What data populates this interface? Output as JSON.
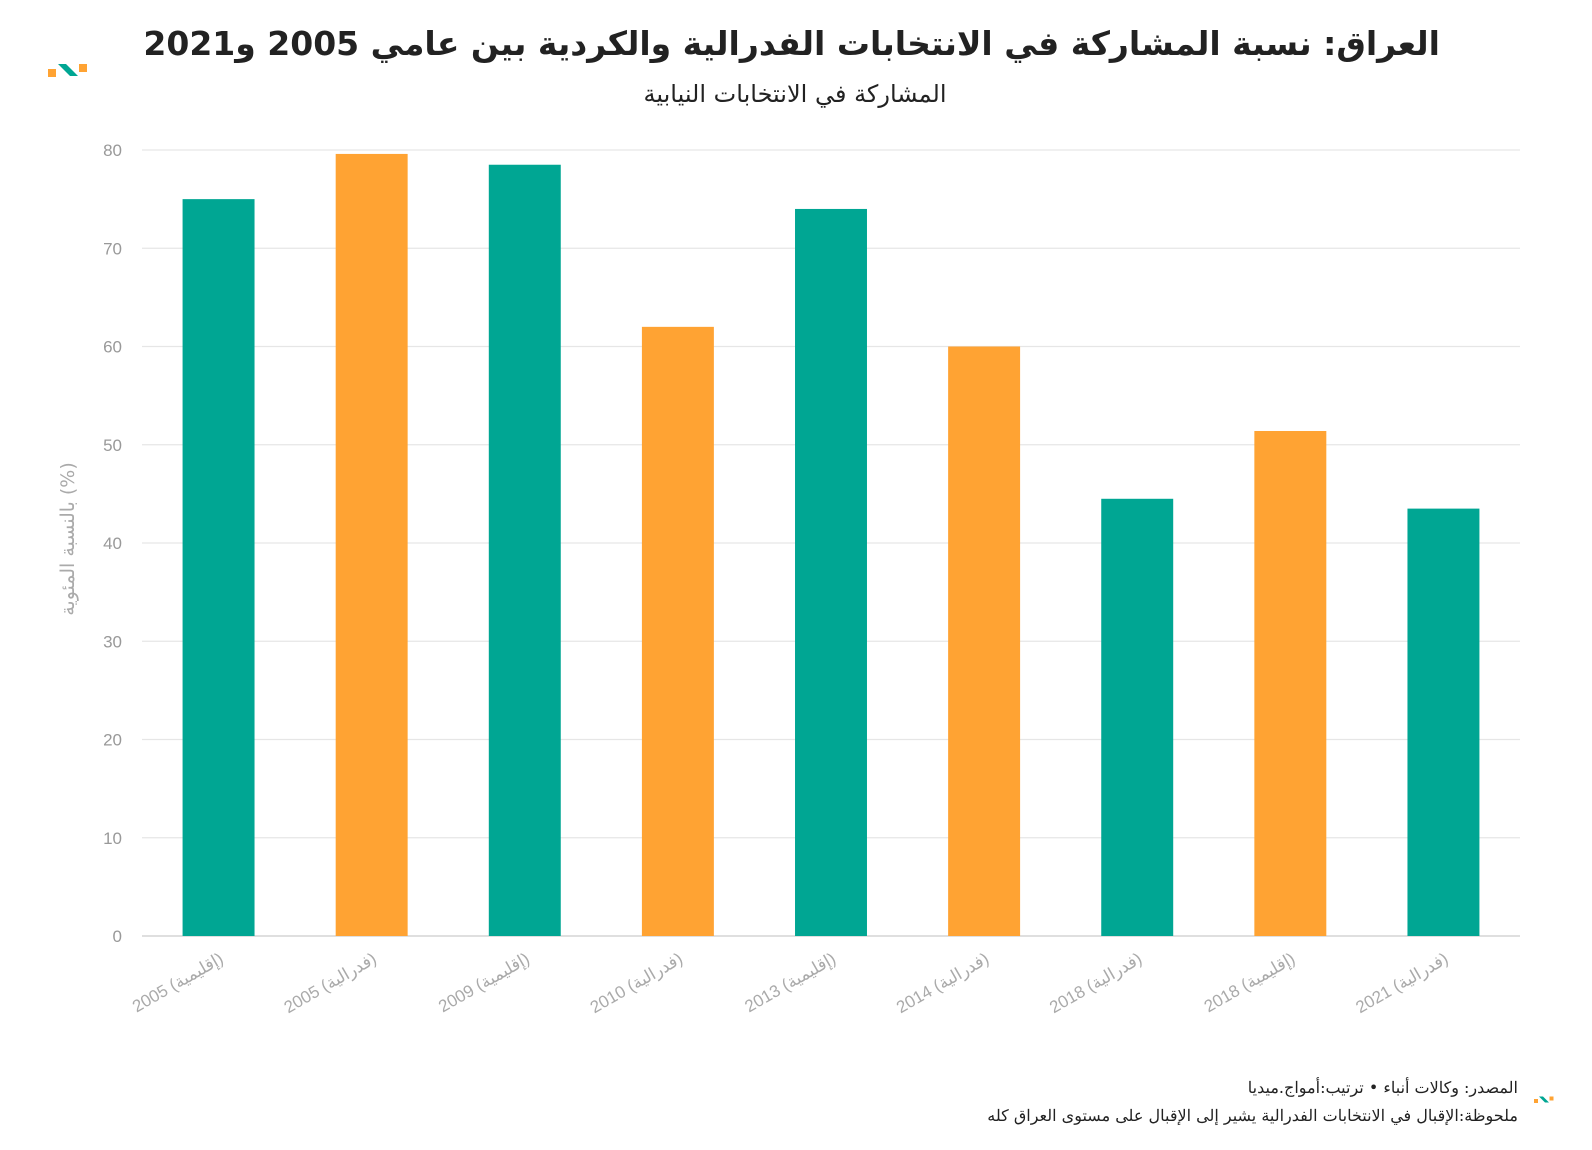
{
  "chart_data": {
    "type": "bar",
    "title": "العراق: نسبة المشاركة في الانتخابات الفدرالية والكردية بين عامي 2005 و2021",
    "subtitle": "المشاركة في الانتخابات النيابية",
    "ylabel": "بالنسبة المئوية (%)",
    "xlabel": "",
    "ylim": [
      0,
      80
    ],
    "yticks": [
      0,
      10,
      20,
      30,
      40,
      50,
      60,
      70,
      80
    ],
    "grid": true,
    "categories": [
      "2005 (إقليمية)",
      "2005 (فدرالية)",
      "2009 (إقليمية)",
      "2010 (فدرالية)",
      "2013 (إقليمية)",
      "2014 (فدرالية)",
      "2018 (فدرالية)",
      "2018 (إقليمية)",
      "2021 (فدرالية)"
    ],
    "values": [
      75,
      79.6,
      78.5,
      62,
      74,
      60,
      44.5,
      51.4,
      43.5
    ],
    "colors": [
      "#00a693",
      "#ffa333",
      "#00a693",
      "#ffa333",
      "#00a693",
      "#ffa333",
      "#00a693",
      "#ffa333",
      "#00a693"
    ]
  },
  "footer": {
    "source": "المصدر: وكالات أنباء • ترتيب:أمواج.ميديا",
    "note": "ملحوظة:الإقبال في الانتخابات الفدرالية يشير إلى الإقبال على مستوى العراق كله"
  },
  "brand": {
    "logo": "amwaj-logo-icon",
    "colors": [
      "#ffa333",
      "#00a693"
    ]
  }
}
